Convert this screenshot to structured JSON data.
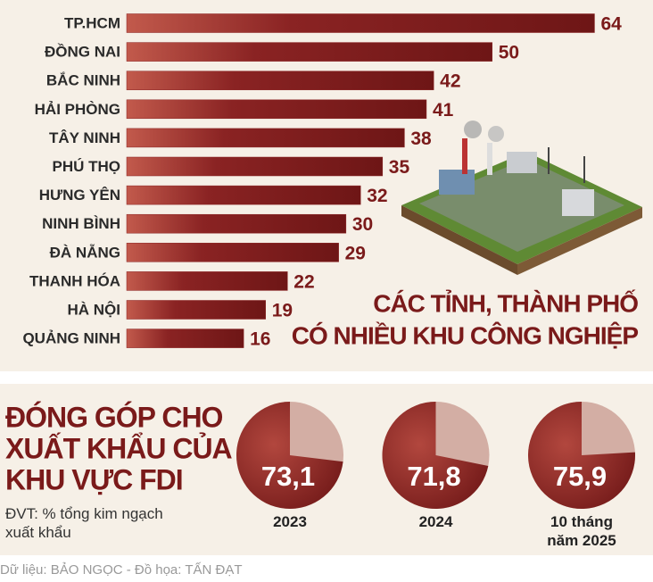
{
  "chart_data": [
    {
      "type": "hbar",
      "title": [
        "CÁC TỈNH, THÀNH PHỐ",
        "CÓ NHIỀU KHU CÔNG NGHIỆP"
      ],
      "categories": [
        "TP.HCM",
        "ĐỒNG NAI",
        "BẮC NINH",
        "HẢI PHÒNG",
        "TÂY NINH",
        "PHÚ THỌ",
        "HƯNG YÊN",
        "NINH BÌNH",
        "ĐÀ NẴNG",
        "THANH HÓA",
        "HÀ NỘI",
        "QUẢNG NINH"
      ],
      "values": [
        64,
        50,
        42,
        41,
        38,
        35,
        32,
        30,
        29,
        22,
        19,
        16
      ],
      "color": "#8a2323",
      "xlim": [
        0,
        72
      ]
    },
    {
      "type": "pie",
      "title": [
        "ĐÓNG GÓP CHO",
        "XUẤT KHẨU CỦA",
        "KHU VỰC FDI"
      ],
      "subtitle": "ĐVT: % tổng kim ngạch xuất khẩu",
      "categories": [
        "2023",
        "2024",
        "10 tháng năm 2025"
      ],
      "values": [
        73.1,
        71.8,
        75.9
      ],
      "value_labels": [
        "73,1",
        "71,8",
        "75,9"
      ],
      "color": "#8a2323",
      "rest_color": "#d3aea4"
    }
  ],
  "source": "Dữ liệu: BẢO NGỌC - Đồ họa: TẤN ĐẠT"
}
